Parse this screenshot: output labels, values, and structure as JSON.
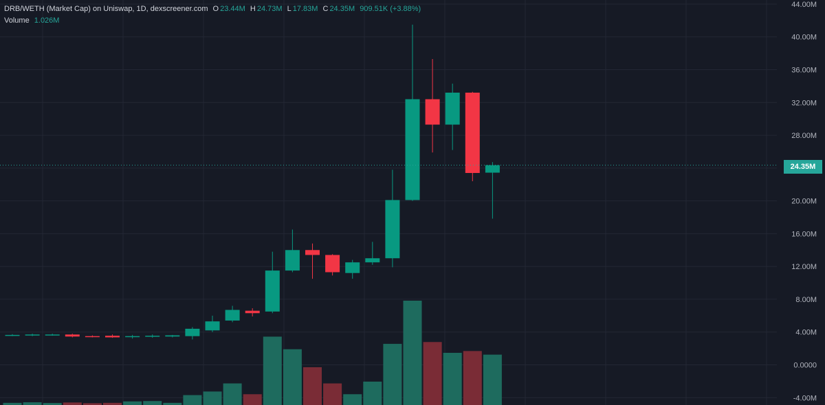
{
  "colors": {
    "background": "#161a25",
    "grid": "#232734",
    "up": "#089981",
    "down": "#f23645",
    "up_volume": "#1e6b5e",
    "down_volume": "#7a2c36",
    "axis_text": "#b2b5be"
  },
  "legend": {
    "title": "DRB/WETH (Market Cap) on Uniswap, 1D, dexscreener.com",
    "o_label": "O",
    "o_value": "23.44M",
    "h_label": "H",
    "h_value": "24.73M",
    "l_label": "L",
    "l_value": "17.83M",
    "c_label": "C",
    "c_value": "24.35M",
    "change": "909.51K (+3.88%)",
    "volume_label": "Volume",
    "volume_value": "1.026M"
  },
  "last_price_label": "24.35M",
  "chart_data": {
    "type": "candlestick",
    "title": "DRB/WETH (Market Cap) on Uniswap, 1D, dexscreener.com",
    "ylim": [
      -4.9,
      44.5
    ],
    "y_ticks": [
      "44.00M",
      "40.00M",
      "36.00M",
      "32.00M",
      "28.00M",
      "24.00M",
      "20.00M",
      "16.00M",
      "12.00M",
      "8.00M",
      "4.00M",
      "0.0000",
      "-4.00M"
    ],
    "y_tick_values": [
      44,
      40,
      36,
      32,
      28,
      24,
      20,
      16,
      12,
      8,
      4,
      0,
      -4
    ],
    "last_price": 24.35,
    "candles": [
      {
        "o": 3.6,
        "h": 3.75,
        "l": 3.5,
        "c": 3.65
      },
      {
        "o": 3.6,
        "h": 3.8,
        "l": 3.5,
        "c": 3.7
      },
      {
        "o": 3.65,
        "h": 3.8,
        "l": 3.55,
        "c": 3.7
      },
      {
        "o": 3.7,
        "h": 3.8,
        "l": 3.35,
        "c": 3.45
      },
      {
        "o": 3.5,
        "h": 3.6,
        "l": 3.35,
        "c": 3.45
      },
      {
        "o": 3.55,
        "h": 3.7,
        "l": 3.3,
        "c": 3.35
      },
      {
        "o": 3.45,
        "h": 3.65,
        "l": 3.2,
        "c": 3.5
      },
      {
        "o": 3.45,
        "h": 3.7,
        "l": 3.3,
        "c": 3.55
      },
      {
        "o": 3.45,
        "h": 3.65,
        "l": 3.35,
        "c": 3.6
      },
      {
        "o": 3.5,
        "h": 4.6,
        "l": 3.1,
        "c": 4.4
      },
      {
        "o": 4.2,
        "h": 6.0,
        "l": 4.0,
        "c": 5.3
      },
      {
        "o": 5.4,
        "h": 7.2,
        "l": 5.2,
        "c": 6.7
      },
      {
        "o": 6.6,
        "h": 6.9,
        "l": 5.9,
        "c": 6.3
      },
      {
        "o": 6.5,
        "h": 13.8,
        "l": 6.3,
        "c": 11.5
      },
      {
        "o": 11.5,
        "h": 16.5,
        "l": 11.3,
        "c": 14.0
      },
      {
        "o": 14.0,
        "h": 14.8,
        "l": 10.5,
        "c": 13.4
      },
      {
        "o": 13.4,
        "h": 13.5,
        "l": 10.9,
        "c": 11.3
      },
      {
        "o": 11.2,
        "h": 12.8,
        "l": 10.5,
        "c": 12.5
      },
      {
        "o": 12.5,
        "h": 15.0,
        "l": 12.2,
        "c": 13.0
      },
      {
        "o": 13.0,
        "h": 23.8,
        "l": 11.9,
        "c": 20.1
      },
      {
        "o": 20.1,
        "h": 41.5,
        "l": 20.0,
        "c": 32.4
      },
      {
        "o": 32.4,
        "h": 37.3,
        "l": 25.9,
        "c": 29.3
      },
      {
        "o": 29.3,
        "h": 34.3,
        "l": 26.2,
        "c": 33.2
      },
      {
        "o": 33.2,
        "h": 33.3,
        "l": 22.4,
        "c": 23.4
      },
      {
        "o": 23.44,
        "h": 24.73,
        "l": 17.83,
        "c": 24.35
      }
    ],
    "volume": {
      "label": "Volume",
      "values": [
        0.12,
        0.15,
        0.11,
        0.14,
        0.1,
        0.12,
        0.2,
        0.22,
        0.12,
        0.55,
        0.75,
        1.2,
        0.6,
        3.8,
        3.1,
        2.1,
        1.2,
        0.6,
        1.3,
        3.4,
        5.8,
        3.5,
        2.9,
        3.0,
        2.8
      ]
    }
  }
}
